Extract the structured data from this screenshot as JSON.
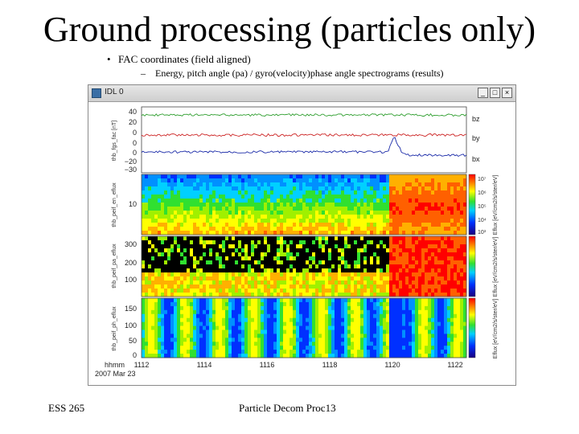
{
  "slide": {
    "title": "Ground processing (particles only)",
    "bullet": "FAC coordinates (field aligned)",
    "sub_bullet": "Energy, pitch angle (pa) / gyro(velocity)phase angle spectrograms (results)",
    "footer_left": "ESS 265",
    "footer_center": "Particle Decom Proc13"
  },
  "window": {
    "title": "IDL 0",
    "minimize": "_",
    "maximize": "□",
    "close": "×"
  },
  "plot": {
    "panel1": {
      "ylabel": "thb_fgs_fac [nT]",
      "yticks": [
        "40",
        "20",
        "0",
        "0",
        "0",
        "−20",
        "−30"
      ],
      "legend": [
        "bz",
        "by",
        "bx"
      ],
      "colors": [
        "#2e9e2e",
        "#cc2222",
        "#1a2aa8"
      ]
    },
    "panel2": {
      "ylabel": "thb_peif_en_eflux",
      "ytick": "10"
    },
    "panel3": {
      "ylabel": "thb_peif_pa_eflux",
      "yticks": [
        "300",
        "200",
        "100"
      ]
    },
    "panel4": {
      "ylabel": "thb_peif_ph_eflux",
      "yticks": [
        "150",
        "100",
        "50",
        "0"
      ]
    },
    "colorbar_ticks": [
      "10⁷",
      "10⁶",
      "10⁵",
      "10⁴",
      "10³"
    ],
    "colorbar_labels": [
      "Eflux [eV/cm2/s/ster/eV]",
      "Eflux [eV/cm2/s/ster/eV]",
      "Eflux [eV/cm2/s/ster/eV]"
    ],
    "xaxis": {
      "ticks": [
        "1112",
        "1114",
        "1116",
        "1118",
        "1120",
        "1122"
      ],
      "label_line1": "hhmm",
      "label_line2": "2007 Mar 23"
    }
  }
}
